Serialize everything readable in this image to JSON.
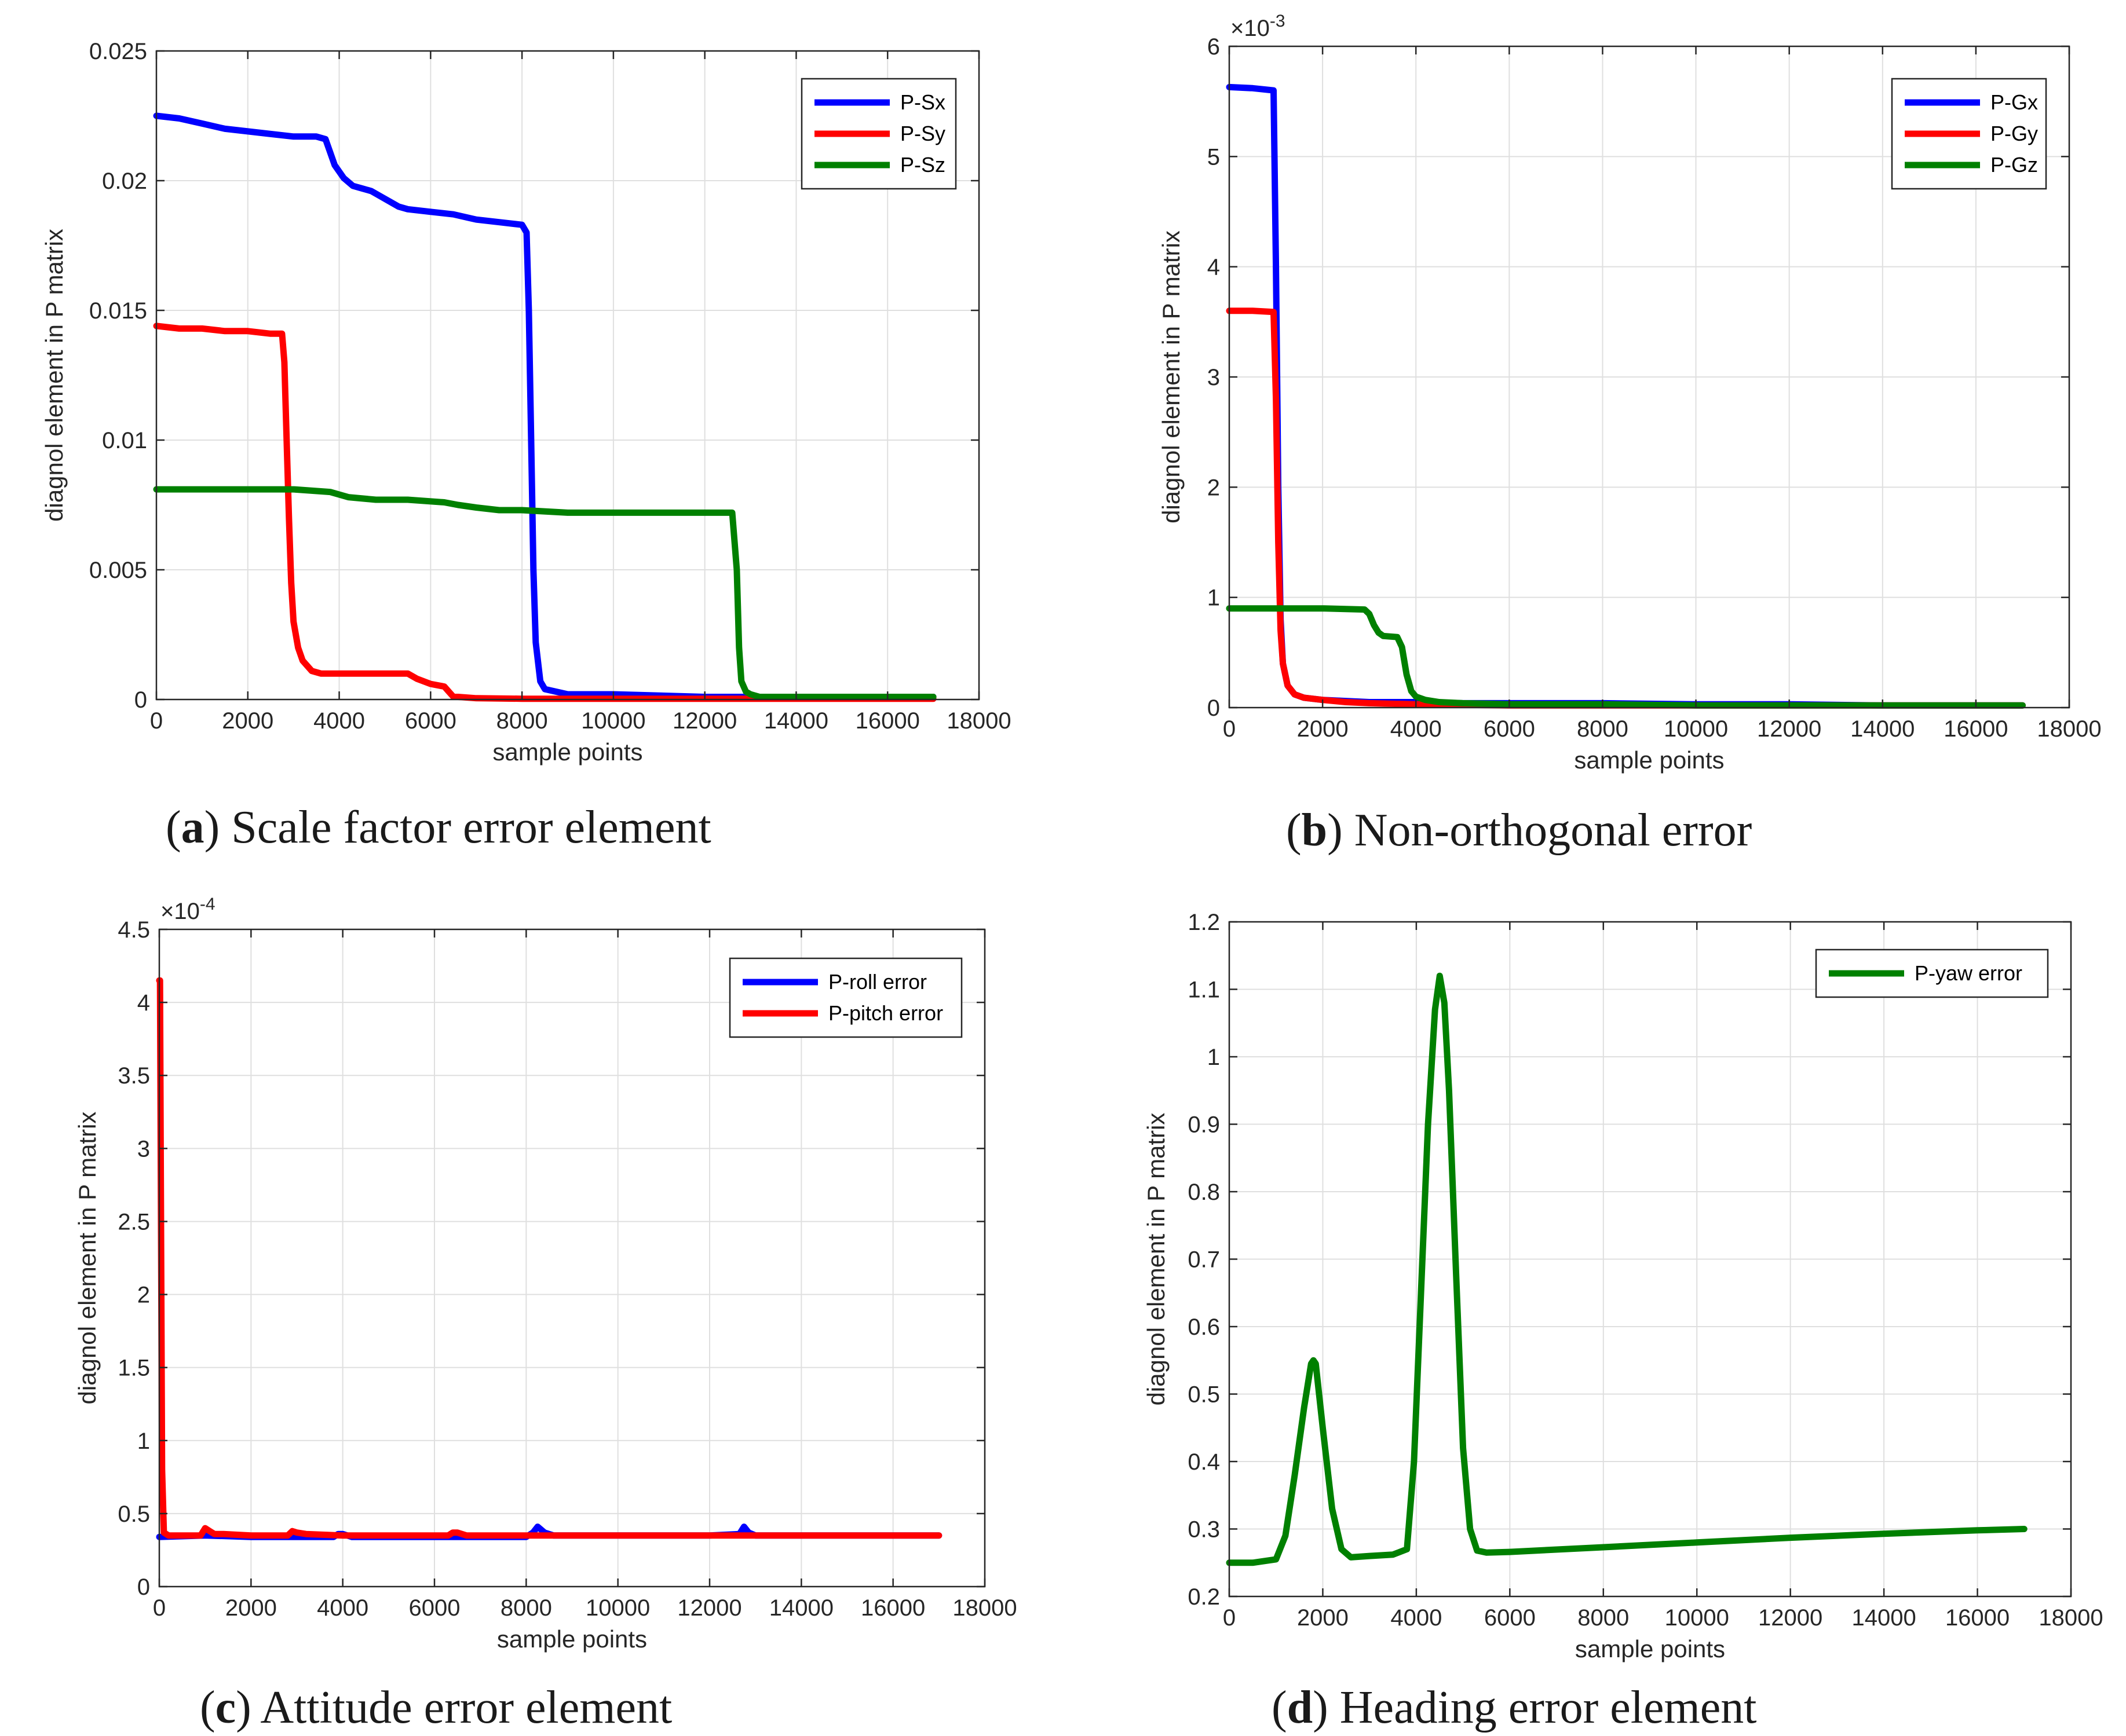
{
  "chart_data": [
    {
      "id": "a",
      "type": "line",
      "caption_letter": "a",
      "caption_text": "Scale factor error element",
      "xlabel": "sample points",
      "ylabel": "diagnol element in P matrix",
      "exponent": "",
      "xlim": [
        0,
        18000
      ],
      "ylim": [
        0,
        0.025
      ],
      "xticks": [
        0,
        2000,
        4000,
        6000,
        8000,
        10000,
        12000,
        14000,
        16000,
        18000
      ],
      "xtick_labels": [
        "0",
        "2000",
        "4000",
        "6000",
        "8000",
        "10000",
        "12000",
        "14000",
        "16000",
        "18000"
      ],
      "yticks": [
        0,
        0.005,
        0.01,
        0.015,
        0.02,
        0.025
      ],
      "ytick_labels": [
        "0",
        "0.005",
        "0.01",
        "0.015",
        "0.02",
        "0.025"
      ],
      "grid": true,
      "legend_position": "top-right",
      "series": [
        {
          "name": "P-Sx",
          "color": "#0000ff",
          "x": [
            0,
            500,
            1000,
            1500,
            2000,
            2500,
            3000,
            3500,
            3700,
            3800,
            3900,
            4100,
            4300,
            4500,
            4700,
            4900,
            5100,
            5300,
            5500,
            6000,
            6500,
            7000,
            7500,
            8000,
            8100,
            8150,
            8200,
            8250,
            8300,
            8400,
            8500,
            9000,
            10000,
            12000,
            14000,
            17000
          ],
          "y": [
            0.0225,
            0.0224,
            0.0222,
            0.022,
            0.0219,
            0.0218,
            0.0217,
            0.0217,
            0.0216,
            0.0211,
            0.0206,
            0.0201,
            0.0198,
            0.0197,
            0.0196,
            0.0194,
            0.0192,
            0.019,
            0.0189,
            0.0188,
            0.0187,
            0.0185,
            0.0184,
            0.0183,
            0.018,
            0.015,
            0.01,
            0.005,
            0.0022,
            0.0007,
            0.0004,
            0.0002,
            0.0002,
            0.0001,
            0.0001,
            0.0001
          ]
        },
        {
          "name": "P-Sy",
          "color": "#ff0000",
          "x": [
            0,
            500,
            1000,
            1500,
            2000,
            2500,
            2750,
            2800,
            2850,
            2900,
            2950,
            3000,
            3100,
            3200,
            3400,
            3600,
            3800,
            4000,
            5000,
            5500,
            5700,
            6000,
            6300,
            6400,
            6500,
            6600,
            7000,
            8000,
            10000,
            12000,
            14000,
            17000
          ],
          "y": [
            0.0144,
            0.0143,
            0.0143,
            0.0142,
            0.0142,
            0.0141,
            0.0141,
            0.013,
            0.01,
            0.007,
            0.0045,
            0.003,
            0.002,
            0.0015,
            0.0011,
            0.001,
            0.001,
            0.001,
            0.001,
            0.001,
            0.0008,
            0.0006,
            0.0005,
            0.0003,
            0.0001,
            0.0001,
            5e-05,
            3e-05,
            3e-05,
            3e-05,
            3e-05,
            3e-05
          ]
        },
        {
          "name": "P-Sz",
          "color": "#008000",
          "x": [
            0,
            1000,
            2000,
            3000,
            3800,
            4200,
            4800,
            5500,
            6300,
            6600,
            7000,
            7500,
            8000,
            9000,
            10000,
            11000,
            12000,
            12600,
            12700,
            12750,
            12800,
            12900,
            13000,
            13200,
            14000,
            15000,
            16000,
            17000
          ],
          "y": [
            0.0081,
            0.0081,
            0.0081,
            0.0081,
            0.008,
            0.0078,
            0.0077,
            0.0077,
            0.0076,
            0.0075,
            0.0074,
            0.0073,
            0.0073,
            0.0072,
            0.0072,
            0.0072,
            0.0072,
            0.0072,
            0.005,
            0.002,
            0.0007,
            0.0003,
            0.0002,
            0.0001,
            0.0001,
            0.0001,
            0.0001,
            0.0001
          ]
        }
      ]
    },
    {
      "id": "b",
      "type": "line",
      "caption_letter": "b",
      "caption_text": "Non-orthogonal error",
      "xlabel": "sample points",
      "ylabel": "diagnol element in P matrix",
      "exponent": "-3",
      "xlim": [
        0,
        18000
      ],
      "ylim": [
        0,
        6
      ],
      "xticks": [
        0,
        2000,
        4000,
        6000,
        8000,
        10000,
        12000,
        14000,
        16000,
        18000
      ],
      "xtick_labels": [
        "0",
        "2000",
        "4000",
        "6000",
        "8000",
        "10000",
        "12000",
        "14000",
        "16000",
        "18000"
      ],
      "yticks": [
        0,
        1,
        2,
        3,
        4,
        5,
        6
      ],
      "ytick_labels": [
        "0",
        "1",
        "2",
        "3",
        "4",
        "5",
        "6"
      ],
      "grid": true,
      "legend_position": "top-right",
      "series": [
        {
          "name": "P-Gx",
          "color": "#0000ff",
          "x": [
            0,
            500,
            950,
            1000,
            1050,
            1100,
            1150,
            1250,
            1400,
            1600,
            2000,
            2500,
            3000,
            4000,
            5000,
            6000,
            8000,
            10000,
            12000,
            14000,
            17000
          ],
          "y": [
            5.63,
            5.62,
            5.6,
            4.0,
            2.0,
            0.8,
            0.4,
            0.2,
            0.12,
            0.09,
            0.07,
            0.06,
            0.05,
            0.05,
            0.04,
            0.04,
            0.04,
            0.03,
            0.03,
            0.02,
            0.02
          ]
        },
        {
          "name": "P-Gy",
          "color": "#ff0000",
          "x": [
            0,
            500,
            950,
            1000,
            1050,
            1100,
            1150,
            1250,
            1400,
            1600,
            2000,
            2500,
            3000,
            4000,
            6000,
            10000,
            17000
          ],
          "y": [
            3.6,
            3.6,
            3.59,
            2.8,
            1.5,
            0.7,
            0.4,
            0.2,
            0.12,
            0.09,
            0.07,
            0.05,
            0.04,
            0.03,
            0.02,
            0.02,
            0.02
          ]
        },
        {
          "name": "P-Gz",
          "color": "#008000",
          "x": [
            0,
            1000,
            2000,
            2900,
            3000,
            3100,
            3200,
            3300,
            3600,
            3700,
            3800,
            3900,
            4000,
            4200,
            4500,
            5000,
            6000,
            8000,
            10000,
            12000,
            14000,
            17000
          ],
          "y": [
            0.9,
            0.9,
            0.9,
            0.89,
            0.85,
            0.75,
            0.68,
            0.65,
            0.64,
            0.55,
            0.3,
            0.15,
            0.1,
            0.07,
            0.05,
            0.04,
            0.03,
            0.03,
            0.02,
            0.02,
            0.02,
            0.02
          ]
        }
      ]
    },
    {
      "id": "c",
      "type": "line",
      "caption_letter": "c",
      "caption_text": "Attitude error element",
      "xlabel": "sample points",
      "ylabel": "diagnol element in P matrix",
      "exponent": "-4",
      "xlim": [
        0,
        18000
      ],
      "ylim": [
        0,
        4.5
      ],
      "xticks": [
        0,
        2000,
        4000,
        6000,
        8000,
        10000,
        12000,
        14000,
        16000,
        18000
      ],
      "xtick_labels": [
        "0",
        "2000",
        "4000",
        "6000",
        "8000",
        "10000",
        "12000",
        "14000",
        "16000",
        "18000"
      ],
      "yticks": [
        0,
        0.5,
        1,
        1.5,
        2,
        2.5,
        3,
        3.5,
        4,
        4.5
      ],
      "ytick_labels": [
        "0",
        "0.5",
        "1",
        "1.5",
        "2",
        "2.5",
        "3",
        "3.5",
        "4",
        "4.5"
      ],
      "grid": true,
      "legend_position": "top-right",
      "series": [
        {
          "name": "P-roll error",
          "color": "#0000ff",
          "x": [
            0,
            1000,
            2000,
            3000,
            3800,
            3900,
            4000,
            4200,
            5000,
            6000,
            8000,
            8150,
            8250,
            8400,
            8600,
            9000,
            10000,
            12000,
            12650,
            12750,
            12850,
            13000,
            13300,
            14000,
            17000
          ],
          "y": [
            0.34,
            0.35,
            0.34,
            0.34,
            0.34,
            0.36,
            0.36,
            0.34,
            0.34,
            0.34,
            0.34,
            0.37,
            0.41,
            0.37,
            0.35,
            0.35,
            0.35,
            0.35,
            0.36,
            0.41,
            0.37,
            0.35,
            0.35,
            0.35,
            0.35
          ]
        },
        {
          "name": "P-pitch error",
          "color": "#ff0000",
          "x": [
            0,
            15,
            30,
            60,
            100,
            200,
            500,
            900,
            1000,
            1100,
            1200,
            1400,
            2000,
            2800,
            2900,
            3000,
            3200,
            4000,
            5000,
            6300,
            6400,
            6500,
            6700,
            8000,
            10000,
            12000,
            14000,
            17000
          ],
          "y": [
            4.15,
            4.15,
            3.0,
            0.8,
            0.37,
            0.35,
            0.35,
            0.35,
            0.4,
            0.38,
            0.36,
            0.36,
            0.35,
            0.35,
            0.38,
            0.37,
            0.36,
            0.35,
            0.35,
            0.35,
            0.37,
            0.37,
            0.35,
            0.35,
            0.35,
            0.35,
            0.35,
            0.35
          ]
        }
      ]
    },
    {
      "id": "d",
      "type": "line",
      "caption_letter": "d",
      "caption_text": "Heading error element",
      "xlabel": "sample points",
      "ylabel": "diagnol element in P matrix",
      "exponent": "",
      "xlim": [
        0,
        18000
      ],
      "ylim": [
        0.2,
        1.2
      ],
      "xticks": [
        0,
        2000,
        4000,
        6000,
        8000,
        10000,
        12000,
        14000,
        16000,
        18000
      ],
      "xtick_labels": [
        "0",
        "2000",
        "4000",
        "6000",
        "8000",
        "10000",
        "12000",
        "14000",
        "16000",
        "18000"
      ],
      "yticks": [
        0.2,
        0.3,
        0.4,
        0.5,
        0.6,
        0.7,
        0.8,
        0.9,
        1.0,
        1.1,
        1.2
      ],
      "ytick_labels": [
        "0.2",
        "0.3",
        "0.4",
        "0.5",
        "0.6",
        "0.7",
        "0.8",
        "0.9",
        "1",
        "1.1",
        "1.2"
      ],
      "grid": true,
      "legend_position": "top-right",
      "series": [
        {
          "name": "P-yaw error",
          "color": "#008000",
          "x": [
            0,
            500,
            1000,
            1200,
            1400,
            1600,
            1750,
            1800,
            1850,
            2000,
            2200,
            2400,
            2600,
            3000,
            3500,
            3800,
            3950,
            4100,
            4250,
            4400,
            4500,
            4600,
            4700,
            4850,
            5000,
            5150,
            5300,
            5500,
            6000,
            8000,
            10000,
            12000,
            14000,
            16000,
            17000
          ],
          "y": [
            0.25,
            0.25,
            0.255,
            0.29,
            0.38,
            0.48,
            0.545,
            0.55,
            0.545,
            0.45,
            0.33,
            0.27,
            0.258,
            0.26,
            0.262,
            0.27,
            0.4,
            0.65,
            0.9,
            1.07,
            1.12,
            1.08,
            0.95,
            0.68,
            0.42,
            0.3,
            0.268,
            0.265,
            0.266,
            0.273,
            0.28,
            0.287,
            0.293,
            0.298,
            0.3
          ]
        }
      ]
    }
  ]
}
